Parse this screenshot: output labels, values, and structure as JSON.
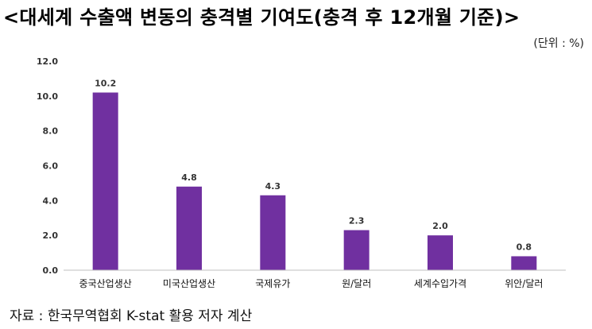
{
  "title": "<대세계 수출액 변동의 충격별 기여도(충격 후 12개월 기준)>",
  "unit_label": "(단위 : %)",
  "source_label": "자료 : 한국무역협회 K-stat 활용 저자 계산",
  "colors": {
    "bar": "#7030a0",
    "axis": "#bfbfbf"
  },
  "chart_data": {
    "type": "bar",
    "title": "<대세계 수출액 변동의 충격별 기여도(충격 후 12개월 기준)>",
    "categories": [
      "중국산업생산",
      "미국산업생산",
      "국제유가",
      "원/달러",
      "세계수입가격",
      "위안/달러"
    ],
    "values": [
      10.2,
      4.8,
      4.3,
      2.3,
      2.0,
      0.8
    ],
    "value_labels": [
      "10.2",
      "4.8",
      "4.3",
      "2.3",
      "2.0",
      "0.8"
    ],
    "ylim": [
      0,
      12
    ],
    "yticks": [
      0,
      2,
      4,
      6,
      8,
      10,
      12
    ],
    "ytick_labels": [
      "0.0",
      "2.0",
      "4.0",
      "6.0",
      "8.0",
      "10.0",
      "12.0"
    ],
    "grid": false,
    "legend": "none"
  }
}
